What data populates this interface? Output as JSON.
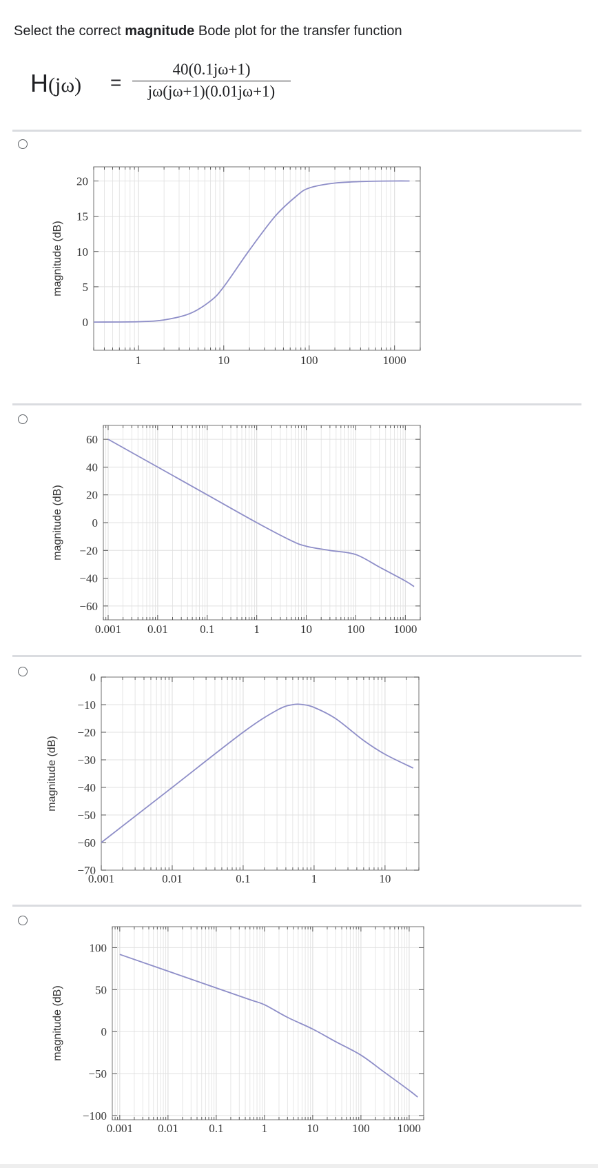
{
  "question": {
    "prefix": "Select the correct ",
    "bold": "magnitude",
    "suffix": " Bode plot for the transfer function"
  },
  "formula": {
    "lhs": "H",
    "arg": "(jω)",
    "equals": "=",
    "numerator": "40(0.1jω+1)",
    "denominator": "jω(jω+1)(0.01jω+1)"
  },
  "colors": {
    "curve": "#8e8ec8",
    "grid": "#e0e0e0",
    "frame": "#8a8a8a",
    "divider": "#dadce0"
  },
  "chart_data": [
    {
      "type": "line",
      "ylabel": "magnitude  (dB)",
      "xscale": "log",
      "xlim": [
        0.3,
        2000
      ],
      "ylim": [
        -4,
        22
      ],
      "xticks": [
        1,
        10,
        100,
        1000
      ],
      "xticklabels": [
        "1",
        "10",
        "100",
        "1000"
      ],
      "yticks": [
        0,
        5,
        10,
        15,
        20
      ],
      "yticklabels": [
        "0",
        "5",
        "10",
        "15",
        "20"
      ],
      "series": [
        {
          "x": [
            0.3,
            1,
            2,
            4,
            7,
            10,
            20,
            40,
            70,
            100,
            200,
            500,
            1000,
            1500
          ],
          "y": [
            0,
            0.05,
            0.3,
            1.2,
            3.0,
            5.0,
            10.2,
            15.0,
            17.8,
            19.0,
            19.7,
            19.95,
            20.0,
            20.0
          ]
        }
      ]
    },
    {
      "type": "line",
      "ylabel": "magnitude  (dB)",
      "xscale": "log",
      "xlim": [
        0.0008,
        2000
      ],
      "ylim": [
        -70,
        70
      ],
      "xticks": [
        0.001,
        0.01,
        0.1,
        1,
        10,
        100,
        1000
      ],
      "xticklabels": [
        "0.001",
        "0.01",
        "0.1",
        "1",
        "10",
        "100",
        "1000"
      ],
      "yticks": [
        -60,
        -40,
        -20,
        0,
        20,
        40,
        60
      ],
      "yticklabels": [
        "−60",
        "−40",
        "−20",
        "0",
        "20",
        "40",
        "60"
      ],
      "series": [
        {
          "x": [
            0.001,
            0.01,
            0.1,
            1,
            5,
            10,
            30,
            100,
            300,
            1000,
            1500
          ],
          "y": [
            60,
            40,
            20,
            0,
            -13,
            -17,
            -20,
            -23,
            -32,
            -42,
            -46
          ]
        }
      ]
    },
    {
      "type": "line",
      "ylabel": "magnitude (dB)",
      "xscale": "log",
      "xlim": [
        0.001,
        30
      ],
      "ylim": [
        -70,
        0
      ],
      "xticks": [
        0.001,
        0.01,
        0.1,
        1,
        10
      ],
      "xticklabels": [
        "0.001",
        "0.01",
        "0.1",
        "1",
        "10"
      ],
      "yticks": [
        -70,
        -60,
        -50,
        -40,
        -30,
        -20,
        -10,
        0
      ],
      "yticklabels": [
        "−70",
        "−60",
        "−50",
        "−40",
        "−30",
        "−20",
        "−10",
        "0"
      ],
      "series": [
        {
          "x": [
            0.001,
            0.01,
            0.1,
            0.3,
            0.5,
            0.7,
            1,
            2,
            5,
            10,
            25
          ],
          "y": [
            -60,
            -40,
            -20,
            -12,
            -10,
            -10,
            -11,
            -15,
            -23,
            -28,
            -33
          ]
        }
      ]
    },
    {
      "type": "line",
      "ylabel": "magnitude  (dB)",
      "xscale": "log",
      "xlim": [
        0.0007,
        2000
      ],
      "ylim": [
        -105,
        125
      ],
      "xticks": [
        0.001,
        0.01,
        0.1,
        1,
        10,
        100,
        1000
      ],
      "xticklabels": [
        "0.001",
        "0.01",
        "0.1",
        "1",
        "10",
        "100",
        "1000"
      ],
      "yticks": [
        -100,
        -50,
        0,
        50,
        100
      ],
      "yticklabels": [
        "−100",
        "−50",
        "0",
        "50",
        "100"
      ],
      "series": [
        {
          "x": [
            0.001,
            0.01,
            0.1,
            0.5,
            1,
            3,
            10,
            30,
            100,
            300,
            1000,
            1500
          ],
          "y": [
            92,
            72,
            52,
            38,
            32,
            17,
            3,
            -12,
            -28,
            -48,
            -70,
            -78
          ]
        }
      ]
    }
  ]
}
